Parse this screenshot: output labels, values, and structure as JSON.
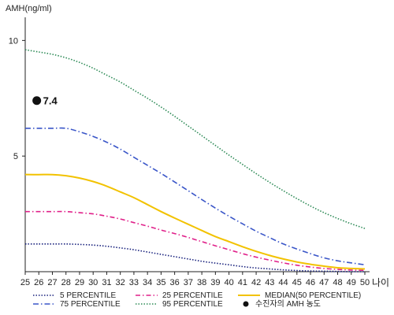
{
  "chart_data": {
    "type": "line",
    "ylabel": "AMH(ng/ml)",
    "xlabel": "나이",
    "x": [
      25,
      26,
      27,
      28,
      29,
      30,
      31,
      32,
      33,
      34,
      35,
      36,
      37,
      38,
      39,
      40,
      41,
      42,
      43,
      44,
      45,
      46,
      47,
      48,
      49,
      50
    ],
    "xlim": [
      25,
      50
    ],
    "ylim": [
      0,
      11
    ],
    "yticks": [
      "5",
      "10"
    ],
    "series": [
      {
        "name": "5 PERCENTILE",
        "color": "#1a237e",
        "dash": "1.5,2",
        "values": [
          1.2,
          1.2,
          1.2,
          1.2,
          1.18,
          1.15,
          1.1,
          1.03,
          0.95,
          0.85,
          0.75,
          0.65,
          0.55,
          0.45,
          0.37,
          0.3,
          0.22,
          0.16,
          0.12,
          0.08,
          0.05,
          0.03,
          0.02,
          0.01,
          0.0,
          0.0
        ]
      },
      {
        "name": "25 PERCENTILE",
        "color": "#e0218a",
        "dash": "6,3,1.5,3",
        "values": [
          2.6,
          2.6,
          2.6,
          2.6,
          2.55,
          2.5,
          2.4,
          2.28,
          2.12,
          1.97,
          1.8,
          1.65,
          1.48,
          1.3,
          1.12,
          0.95,
          0.78,
          0.63,
          0.5,
          0.38,
          0.28,
          0.2,
          0.14,
          0.1,
          0.07,
          0.06
        ]
      },
      {
        "name": "MEDIAN(50 PERCENTILE)",
        "color": "#f2c200",
        "dash": "",
        "values": [
          4.2,
          4.2,
          4.2,
          4.15,
          4.05,
          3.9,
          3.7,
          3.45,
          3.2,
          2.9,
          2.6,
          2.32,
          2.05,
          1.78,
          1.52,
          1.3,
          1.08,
          0.88,
          0.7,
          0.55,
          0.42,
          0.32,
          0.24,
          0.17,
          0.14,
          0.12
        ]
      },
      {
        "name": "75 PERCENTILE",
        "color": "#3a56c8",
        "dash": "7,3,1.5,3",
        "values": [
          6.2,
          6.2,
          6.2,
          6.2,
          6.05,
          5.85,
          5.6,
          5.3,
          4.95,
          4.6,
          4.25,
          3.88,
          3.5,
          3.12,
          2.75,
          2.4,
          2.07,
          1.75,
          1.47,
          1.2,
          0.98,
          0.78,
          0.6,
          0.47,
          0.38,
          0.3
        ]
      },
      {
        "name": "95 PERCENTILE",
        "color": "#2e8b57",
        "dash": "1.5,2",
        "values": [
          9.6,
          9.5,
          9.4,
          9.25,
          9.05,
          8.8,
          8.5,
          8.2,
          7.85,
          7.5,
          7.12,
          6.72,
          6.3,
          5.88,
          5.46,
          5.04,
          4.64,
          4.24,
          3.86,
          3.5,
          3.16,
          2.84,
          2.55,
          2.3,
          2.07,
          1.87
        ]
      }
    ],
    "point": {
      "name": "수진자의 AMH 농도",
      "x": 25.85,
      "y": 7.4,
      "label": "7.4"
    },
    "legend_layout": "bottom"
  }
}
